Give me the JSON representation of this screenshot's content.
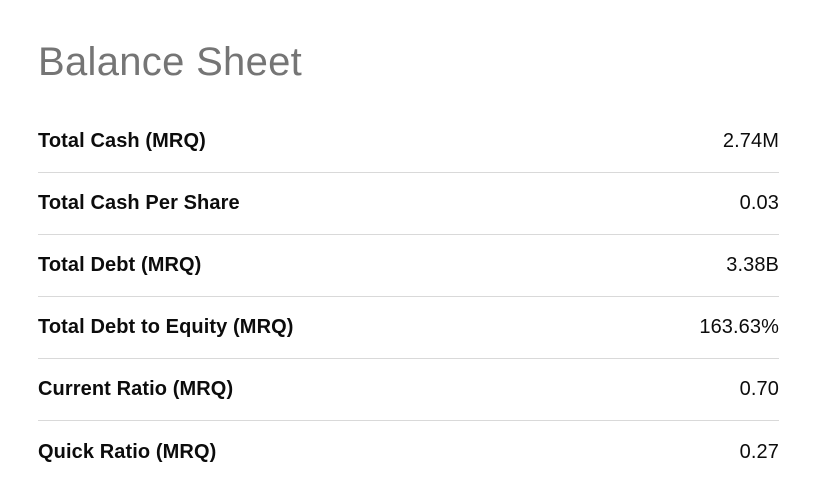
{
  "title": "Balance Sheet",
  "table": {
    "rows": [
      {
        "label": "Total Cash (MRQ)",
        "value": "2.74M"
      },
      {
        "label": "Total Cash Per Share",
        "value": "0.03"
      },
      {
        "label": "Total Debt (MRQ)",
        "value": "3.38B"
      },
      {
        "label": "Total Debt to Equity (MRQ)",
        "value": "163.63%"
      },
      {
        "label": "Current Ratio (MRQ)",
        "value": "0.70"
      },
      {
        "label": "Quick Ratio (MRQ)",
        "value": "0.27"
      }
    ]
  },
  "colors": {
    "background": "#ffffff",
    "title": "#757575",
    "text": "#0c0c0c",
    "divider": "#d9d9d9"
  }
}
